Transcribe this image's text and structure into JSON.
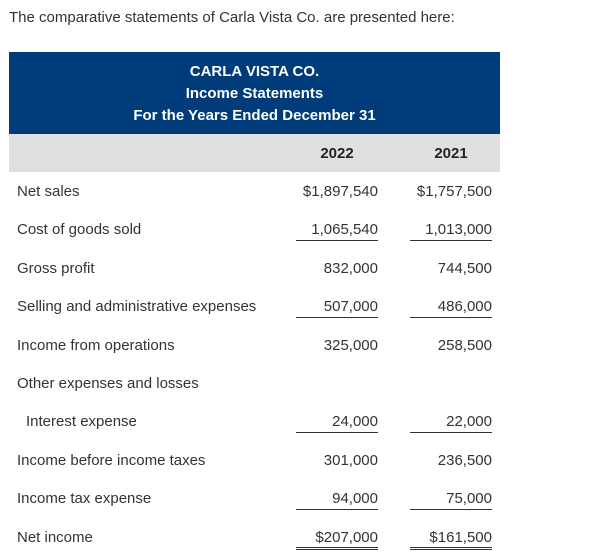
{
  "intro": "The comparative statements of Carla Vista Co. are presented here:",
  "header": {
    "company": "CARLA VISTA CO.",
    "statement": "Income Statements",
    "period": "For the Years Ended December 31"
  },
  "columns": [
    "2022",
    "2021"
  ],
  "rows": [
    {
      "label": "Net sales",
      "v2022": "$1,897,540",
      "v2021": "$1,757,500"
    },
    {
      "label": "Cost of goods sold",
      "v2022": "1,065,540",
      "v2021": "1,013,000"
    },
    {
      "label": "Gross profit",
      "v2022": "832,000",
      "v2021": "744,500"
    },
    {
      "label": "Selling and administrative expenses",
      "v2022": "507,000",
      "v2021": "486,000"
    },
    {
      "label": "Income from operations",
      "v2022": "325,000",
      "v2021": "258,500"
    },
    {
      "label": "Other expenses and losses",
      "v2022": "",
      "v2021": ""
    },
    {
      "label": "Interest expense",
      "v2022": "24,000",
      "v2021": "22,000"
    },
    {
      "label": "Income before income taxes",
      "v2022": "301,000",
      "v2021": "236,500"
    },
    {
      "label": "Income tax expense",
      "v2022": "94,000",
      "v2021": "75,000"
    },
    {
      "label": "Net income",
      "v2022": "$207,000",
      "v2021": "$161,500"
    }
  ]
}
